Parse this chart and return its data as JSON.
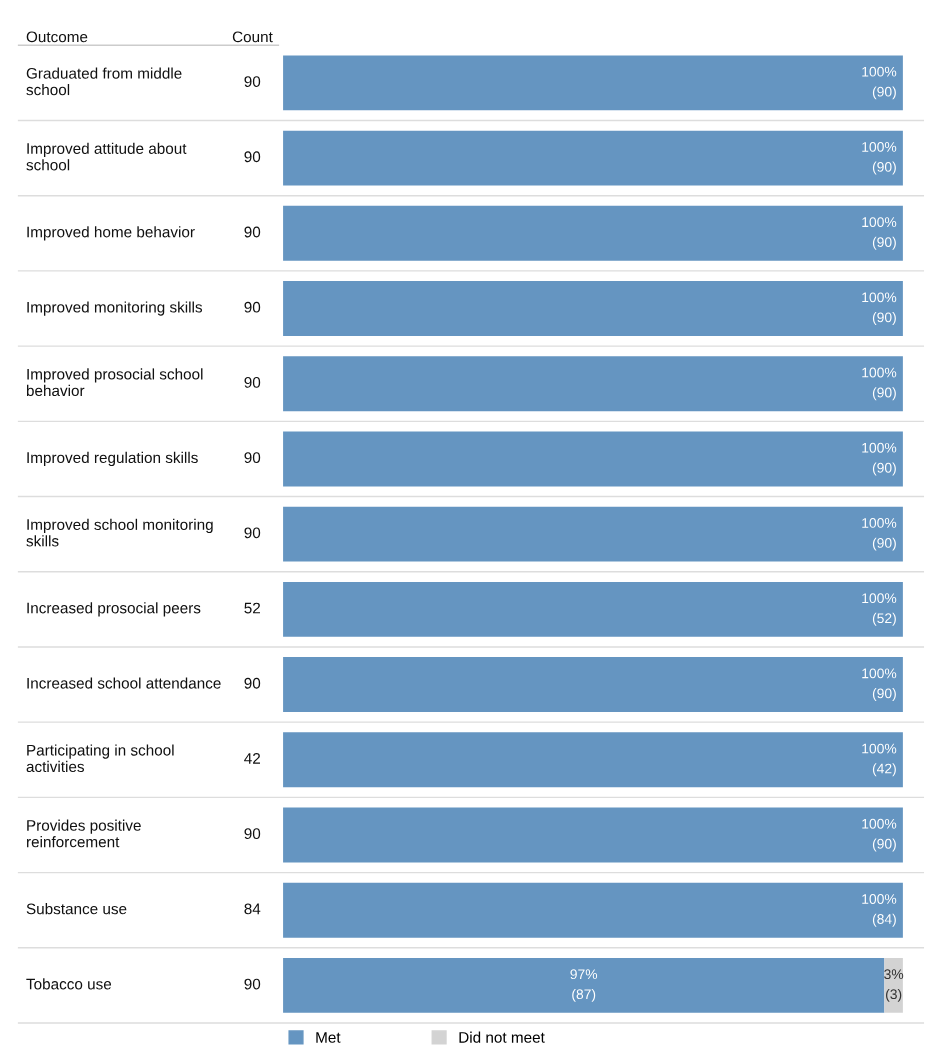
{
  "chart_data": {
    "type": "bar",
    "orientation": "horizontal",
    "stacked": true,
    "ylabel": "Outcome",
    "xlim": [
      0,
      100
    ],
    "legend": "bottom",
    "tick_labels": false,
    "categories": [
      "Graduated from middle\nschool",
      "Improved attitude about\nschool",
      "Improved home behavior",
      "Improved monitoring skills",
      "Improved prosocial school\nbehavior",
      "Improved regulation skills",
      "Improved school monitoring\nskills",
      "Increased prosocial peers",
      "Increased school attendance",
      "Participating in school\nactivities",
      "Provides positive\nreinforcement",
      "Substance use",
      "Tobacco use"
    ],
    "series": [
      {
        "name": "Met",
        "color": "#6595c1",
        "values": [
          100,
          100,
          100,
          100,
          100,
          100,
          100,
          100,
          100,
          100,
          100,
          100,
          97
        ],
        "value_labels": [
          "100%\n(90)",
          "100%\n(90)",
          "100%\n(90)",
          "100%\n(90)",
          "100%\n(90)",
          "100%\n(90)",
          "100%\n(90)",
          "100%\n(52)",
          "100%\n(90)",
          "100%\n(42)",
          "100%\n(90)",
          "100%\n(84)",
          "97%\n(87)"
        ]
      },
      {
        "name": "Did not meet",
        "color": "#d3d3d3",
        "values": [
          0,
          0,
          0,
          0,
          0,
          0,
          0,
          0,
          0,
          0,
          0,
          0,
          3
        ],
        "value_labels": [
          null,
          null,
          null,
          null,
          null,
          null,
          null,
          null,
          null,
          null,
          null,
          null,
          "3%\n(3)"
        ]
      }
    ],
    "annotations": [
      "Count",
      "90",
      "90",
      "90",
      "90",
      "90",
      "90",
      "90",
      "52",
      "90",
      "42",
      "90",
      "84",
      "90"
    ]
  }
}
